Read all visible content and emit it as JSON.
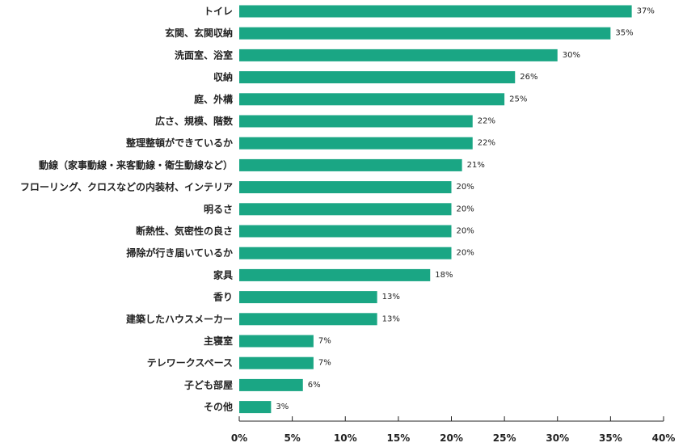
{
  "chart_data": {
    "type": "bar",
    "orientation": "horizontal",
    "categories": [
      "トイレ",
      "玄関、玄関収納",
      "洗面室、浴室",
      "収納",
      "庭、外構",
      "広さ、規模、階数",
      "整理整頓ができているか",
      "動線（家事動線・来客動線・衛生動線など）",
      "フローリング、クロスなどの内装材、インテリア",
      "明るさ",
      "断熱性、気密性の良さ",
      "掃除が行き届いているか",
      "家具",
      "香り",
      "建築したハウスメーカー",
      "主寝室",
      "テレワークスペース",
      "子ども部屋",
      "その他"
    ],
    "values": [
      37,
      35,
      30,
      26,
      25,
      22,
      22,
      21,
      20,
      20,
      20,
      20,
      18,
      13,
      13,
      7,
      7,
      6,
      3
    ],
    "value_labels": [
      "37%",
      "35%",
      "30%",
      "26%",
      "25%",
      "22%",
      "22%",
      "21%",
      "20%",
      "20%",
      "20%",
      "20%",
      "18%",
      "13%",
      "13%",
      "7%",
      "7%",
      "6%",
      "3%"
    ],
    "xlim": [
      0,
      40
    ],
    "xticks": [
      0,
      5,
      10,
      15,
      20,
      25,
      30,
      35,
      40
    ],
    "xtick_labels": [
      "0%",
      "5%",
      "10%",
      "15%",
      "20%",
      "25%",
      "30%",
      "35%",
      "40%"
    ],
    "bar_color": "#1aa684",
    "grid": false,
    "title": "",
    "xlabel": "",
    "ylabel": ""
  }
}
